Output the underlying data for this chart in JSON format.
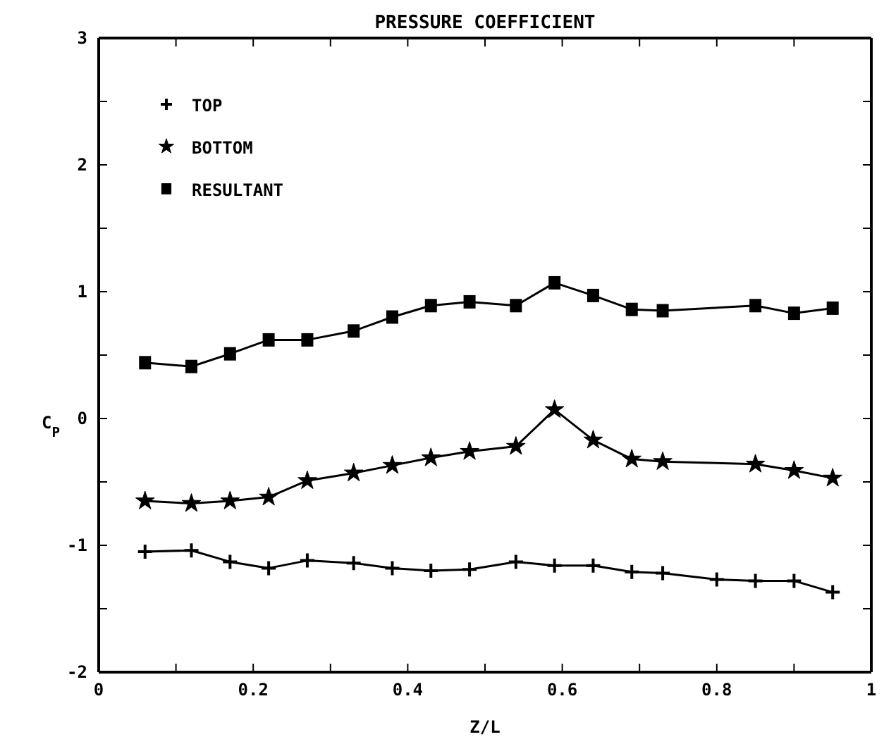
{
  "chart_data": {
    "type": "line",
    "title": "PRESSURE COEFFICIENT",
    "xlabel": "Z/L",
    "ylabel": "C$_{P}$",
    "xlim": [
      0,
      1
    ],
    "ylim": [
      -2,
      3
    ],
    "xticks": [
      0,
      {
        "value": 0.1,
        "label": null
      },
      0.2,
      {
        "value": 0.3,
        "label": null
      },
      0.4,
      {
        "value": 0.5,
        "label": null
      },
      0.6,
      {
        "value": 0.7,
        "label": null
      },
      0.8,
      {
        "value": 0.9,
        "label": null
      },
      1
    ],
    "yticks": [
      -2,
      {
        "value": -1.5,
        "label": null
      },
      -1,
      {
        "value": -0.5,
        "label": null
      },
      0,
      {
        "value": 0.5,
        "label": null
      },
      1,
      {
        "value": 1.5,
        "label": null
      },
      2,
      {
        "value": 2.5,
        "label": null
      },
      3
    ],
    "grid": false,
    "legend": "top left",
    "line_style": "solid",
    "series": [
      {
        "name": "TOP",
        "color": "#000000",
        "marker": "cross",
        "x": [
          0.06,
          0.12,
          0.17,
          0.22,
          0.27,
          0.33,
          0.38,
          0.43,
          0.48,
          0.54,
          0.59,
          0.64,
          0.69,
          0.73,
          0.8,
          0.85,
          0.9,
          0.95
        ],
        "values": [
          -1.05,
          -1.04,
          -1.13,
          -1.18,
          -1.12,
          -1.14,
          -1.18,
          -1.2,
          -1.19,
          -1.13,
          -1.16,
          -1.16,
          -1.21,
          -1.22,
          -1.27,
          -1.28,
          -1.28,
          -1.37
        ]
      },
      {
        "name": "BOTTOM",
        "color": "#000000",
        "marker": "star",
        "x": [
          0.06,
          0.12,
          0.17,
          0.22,
          0.27,
          0.33,
          0.38,
          0.43,
          0.48,
          0.54,
          0.59,
          0.64,
          0.69,
          0.73,
          0.85,
          0.9,
          0.95
        ],
        "values": [
          -0.65,
          -0.67,
          -0.65,
          -0.62,
          -0.49,
          -0.43,
          -0.37,
          -0.31,
          -0.26,
          -0.22,
          0.07,
          -0.17,
          -0.32,
          -0.34,
          -0.36,
          -0.41,
          -0.47
        ]
      },
      {
        "name": "RESULTANT",
        "color": "#000000",
        "marker": "square",
        "x": [
          0.06,
          0.12,
          0.17,
          0.22,
          0.27,
          0.33,
          0.38,
          0.43,
          0.48,
          0.54,
          0.59,
          0.64,
          0.69,
          0.73,
          0.85,
          0.9,
          0.95
        ],
        "values": [
          0.44,
          0.41,
          0.51,
          0.62,
          0.62,
          0.69,
          0.8,
          0.89,
          0.92,
          0.89,
          1.07,
          0.97,
          0.86,
          0.85,
          0.89,
          0.83,
          0.87
        ]
      }
    ]
  }
}
